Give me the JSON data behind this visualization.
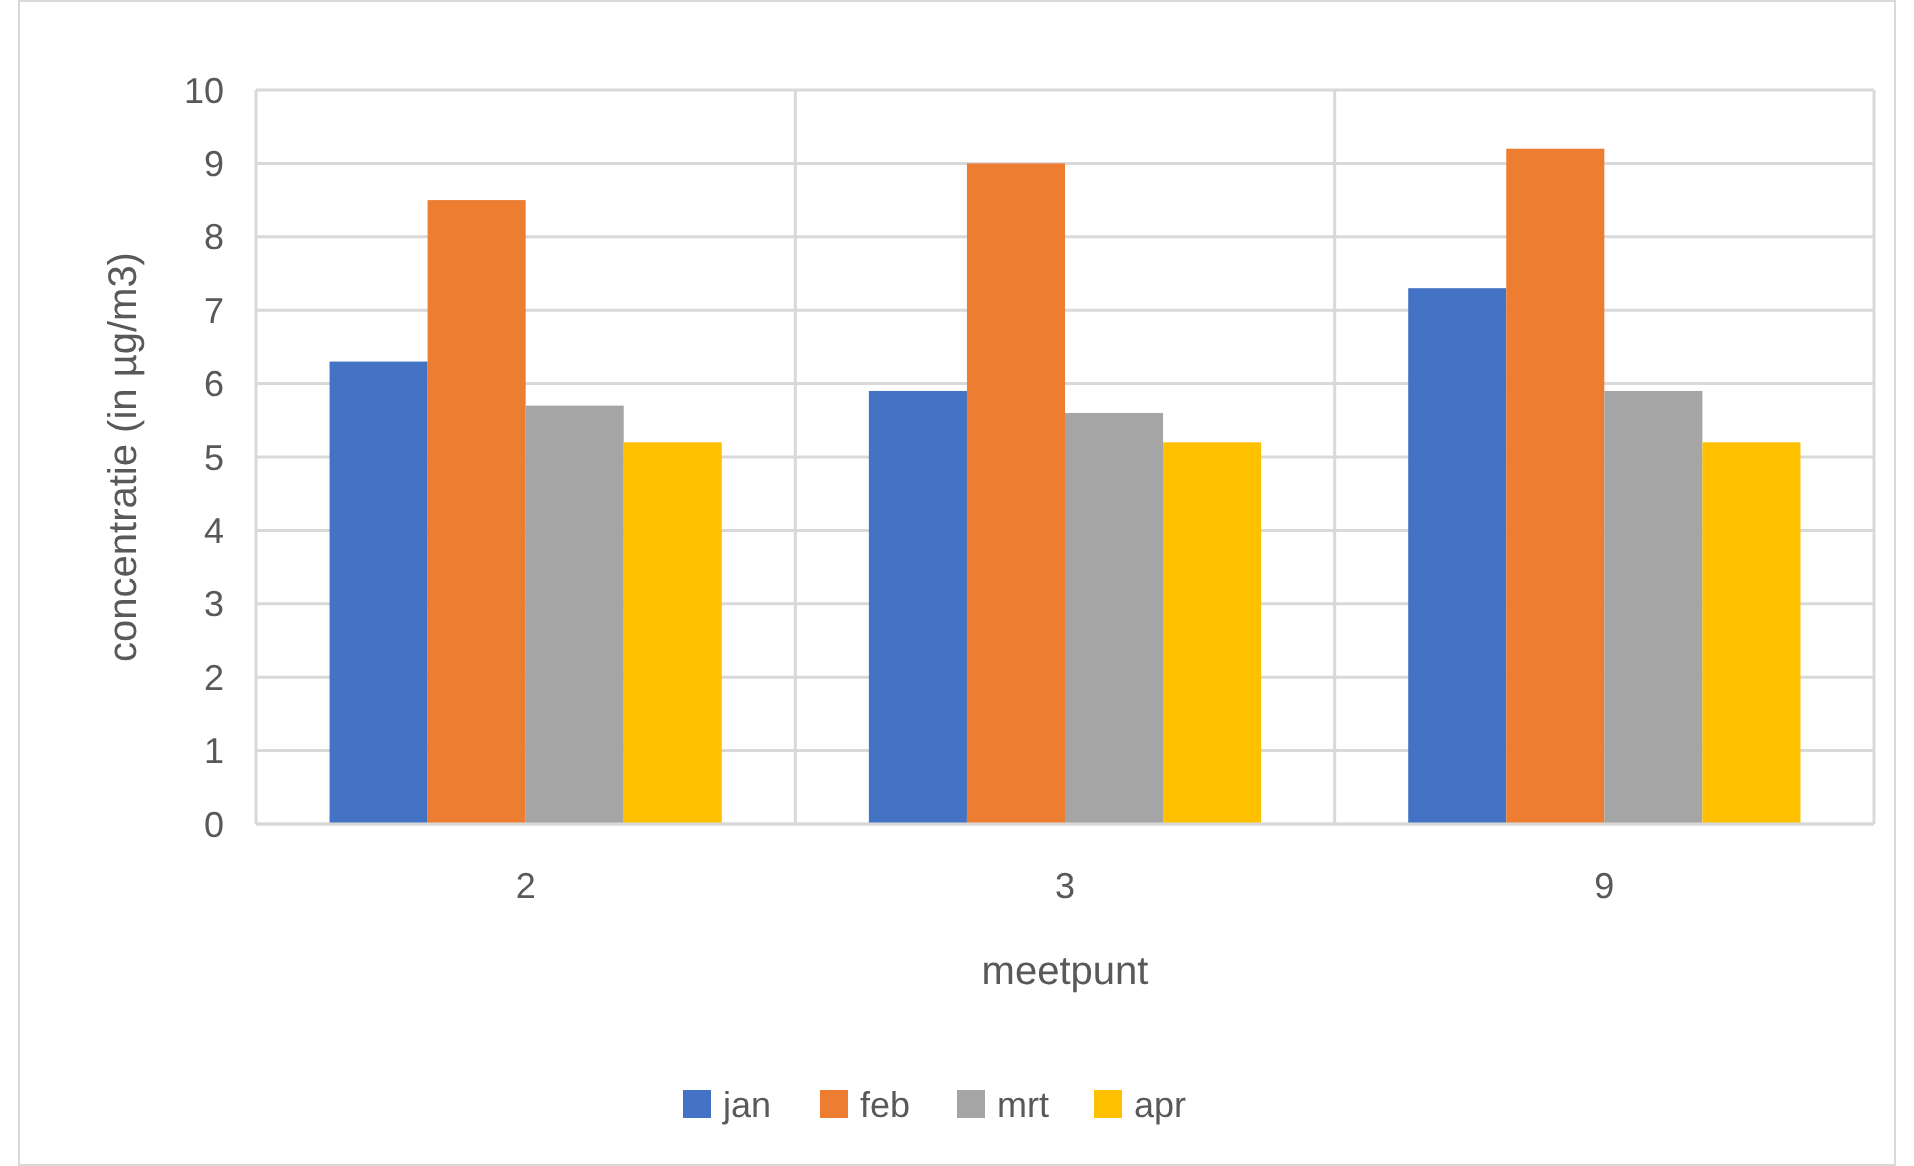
{
  "chart_data": {
    "type": "bar",
    "xlabel": "meetpunt",
    "ylabel": "concentratie (in µg/m3)",
    "categories": [
      "2",
      "3",
      "9"
    ],
    "series": [
      {
        "name": "jan",
        "color": "#4472c4",
        "values": [
          6.3,
          5.9,
          7.3
        ]
      },
      {
        "name": "feb",
        "color": "#ed7d31",
        "values": [
          8.5,
          9.0,
          9.2
        ]
      },
      {
        "name": "mrt",
        "color": "#a5a5a5",
        "values": [
          5.7,
          5.6,
          5.9
        ]
      },
      {
        "name": "apr",
        "color": "#ffc000",
        "values": [
          5.2,
          5.2,
          5.2
        ]
      }
    ],
    "ylim": [
      0,
      10
    ],
    "yticks": [
      0,
      1,
      2,
      3,
      4,
      5,
      6,
      7,
      8,
      9,
      10
    ],
    "grid": true,
    "legend": "bottom"
  }
}
